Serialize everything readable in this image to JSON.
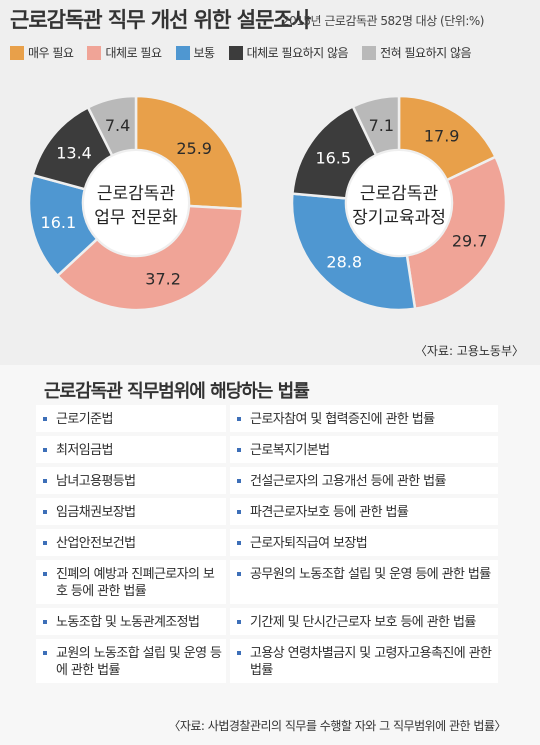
{
  "header": {
    "title": "근로감독관 직무 개선 위한 설문조사",
    "subtitle": "2015년 근로감독관 582명 대상 (단위:%)"
  },
  "legend": [
    {
      "label": "매우 필요",
      "color": "#e8a04a"
    },
    {
      "label": "대체로 필요",
      "color": "#f0a497"
    },
    {
      "label": "보통",
      "color": "#4f97d1"
    },
    {
      "label": "대체로 필요하지 않음",
      "color": "#3c3c3c"
    },
    {
      "label": "전혀 필요하지 않음",
      "color": "#b9b9b9"
    }
  ],
  "chart_data": [
    {
      "type": "pie",
      "center_label": [
        "근로감독관",
        "업무 전문화"
      ],
      "categories": [
        "매우 필요",
        "대체로 필요",
        "보통",
        "대체로 필요하지 않음",
        "전혀 필요하지 않음"
      ],
      "values": [
        25.9,
        37.2,
        16.1,
        13.4,
        7.4
      ],
      "labels": [
        "25.9",
        "37.2",
        "16.1",
        "13.4",
        "7.4"
      ],
      "colors": [
        "#e8a04a",
        "#f0a497",
        "#4f97d1",
        "#3c3c3c",
        "#b9b9b9"
      ]
    },
    {
      "type": "pie",
      "center_label": [
        "근로감독관",
        "장기교육과정"
      ],
      "categories": [
        "매우 필요",
        "대체로 필요",
        "보통",
        "대체로 필요하지 않음",
        "전혀 필요하지 않음"
      ],
      "values": [
        17.9,
        29.7,
        28.8,
        16.5,
        7.1
      ],
      "labels": [
        "17.9",
        "29.7",
        "28.8",
        "16.5",
        "7.1"
      ],
      "colors": [
        "#e8a04a",
        "#f0a497",
        "#4f97d1",
        "#3c3c3c",
        "#b9b9b9"
      ]
    }
  ],
  "source_survey": "〈자료: 고용노동부〉",
  "laws": {
    "title": "근로감독관 직무범위에 해당하는 법률",
    "items": [
      "근로기준법",
      "근로자참여 및 협력증진에 관한 법률",
      "최저임금법",
      "근로복지기본법",
      "남녀고용평등법",
      "건설근로자의 고용개선 등에 관한 법률",
      "임금채권보장법",
      "파견근로자보호 등에 관한 법률",
      "산업안전보건법",
      "근로자퇴직급여 보장법",
      "진폐의 예방과 진폐근로자의 보호 등에 관한 법률",
      "공무원의 노동조합 설립 및 운영 등에 관한 법률",
      "노동조합 및 노동관계조정법",
      "기간제 및 단시간근로자 보호 등에 관한 법률",
      "교원의 노동조합 설립 및 운영 등에 관한 법률",
      "고용상 연령차별금지 및 고령자고용촉진에 관한 법률"
    ]
  },
  "source_laws": "〈자료: 사법경찰관리의 직무를 수행할 자와 그 직무범위에 관한 법률〉"
}
